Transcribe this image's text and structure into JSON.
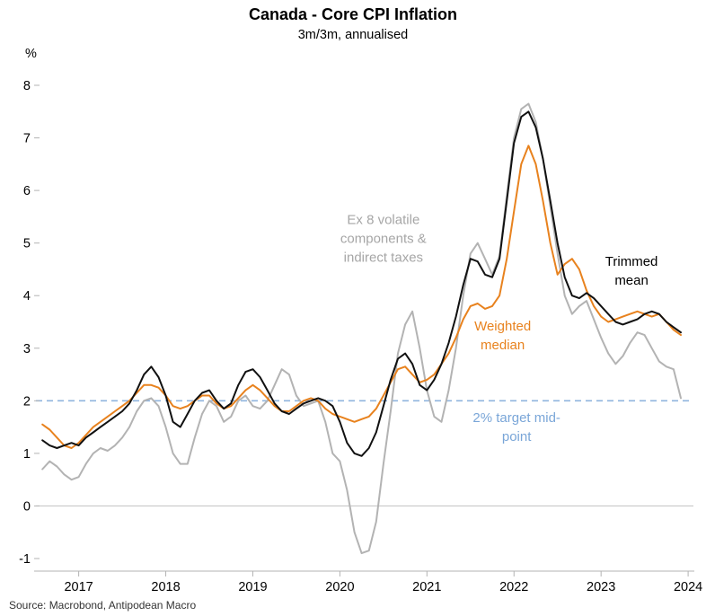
{
  "page": {
    "source": "Source: Macrobond, Antipodean Macro"
  },
  "chart_data": {
    "type": "line",
    "title": "Canada - Core CPI Inflation",
    "subtitle": "3m/3m, annualised",
    "y_axis_unit": "%",
    "xlim": [
      2016.55,
      2024.03
    ],
    "ylim": [
      -1,
      8
    ],
    "yticks": [
      -1,
      0,
      1,
      2,
      3,
      4,
      5,
      6,
      7,
      8
    ],
    "xticks": [
      2017,
      2018,
      2019,
      2020,
      2021,
      2022,
      2023,
      2024
    ],
    "grid": false,
    "legend": "inline-annotations",
    "x": [
      2016.583,
      2016.667,
      2016.75,
      2016.833,
      2016.917,
      2017.0,
      2017.083,
      2017.167,
      2017.25,
      2017.333,
      2017.417,
      2017.5,
      2017.583,
      2017.667,
      2017.75,
      2017.833,
      2017.917,
      2018.0,
      2018.083,
      2018.167,
      2018.25,
      2018.333,
      2018.417,
      2018.5,
      2018.583,
      2018.667,
      2018.75,
      2018.833,
      2018.917,
      2019.0,
      2019.083,
      2019.167,
      2019.25,
      2019.333,
      2019.417,
      2019.5,
      2019.583,
      2019.667,
      2019.75,
      2019.833,
      2019.917,
      2020.0,
      2020.083,
      2020.167,
      2020.25,
      2020.333,
      2020.417,
      2020.5,
      2020.583,
      2020.667,
      2020.75,
      2020.833,
      2020.917,
      2021.0,
      2021.083,
      2021.167,
      2021.25,
      2021.333,
      2021.417,
      2021.5,
      2021.583,
      2021.667,
      2021.75,
      2021.833,
      2021.917,
      2022.0,
      2022.083,
      2022.167,
      2022.25,
      2022.333,
      2022.417,
      2022.5,
      2022.583,
      2022.667,
      2022.75,
      2022.833,
      2022.917,
      2023.0,
      2023.083,
      2023.167,
      2023.25,
      2023.333,
      2023.417,
      2023.5,
      2023.583,
      2023.667,
      2023.75,
      2023.833,
      2023.917
    ],
    "series": [
      {
        "name": "Trimmed mean",
        "color": "#111111",
        "values": [
          1.25,
          1.15,
          1.1,
          1.15,
          1.2,
          1.15,
          1.3,
          1.4,
          1.5,
          1.6,
          1.7,
          1.8,
          1.95,
          2.2,
          2.5,
          2.65,
          2.45,
          2.1,
          1.6,
          1.5,
          1.75,
          2.0,
          2.15,
          2.2,
          2.0,
          1.85,
          1.95,
          2.3,
          2.55,
          2.6,
          2.45,
          2.2,
          1.95,
          1.8,
          1.75,
          1.85,
          1.95,
          2.0,
          2.05,
          2.0,
          1.9,
          1.6,
          1.2,
          1.0,
          0.95,
          1.1,
          1.4,
          1.9,
          2.4,
          2.8,
          2.9,
          2.7,
          2.3,
          2.2,
          2.4,
          2.7,
          3.1,
          3.6,
          4.2,
          4.7,
          4.65,
          4.4,
          4.35,
          4.7,
          5.8,
          6.9,
          7.4,
          7.5,
          7.2,
          6.6,
          5.8,
          5.0,
          4.35,
          4.0,
          3.95,
          4.05,
          3.95,
          3.8,
          3.65,
          3.5,
          3.45,
          3.5,
          3.55,
          3.65,
          3.7,
          3.65,
          3.5,
          3.4,
          3.3
        ]
      },
      {
        "name": "Weighted median",
        "color": "#e8821e",
        "values": [
          1.55,
          1.45,
          1.3,
          1.15,
          1.1,
          1.2,
          1.35,
          1.5,
          1.6,
          1.7,
          1.8,
          1.9,
          2.0,
          2.15,
          2.3,
          2.3,
          2.25,
          2.1,
          1.9,
          1.85,
          1.9,
          2.0,
          2.1,
          2.1,
          1.95,
          1.85,
          1.9,
          2.05,
          2.2,
          2.3,
          2.2,
          2.05,
          1.9,
          1.8,
          1.8,
          1.9,
          2.0,
          2.05,
          2.0,
          1.85,
          1.75,
          1.7,
          1.65,
          1.6,
          1.65,
          1.7,
          1.85,
          2.1,
          2.35,
          2.6,
          2.65,
          2.5,
          2.35,
          2.4,
          2.5,
          2.7,
          2.9,
          3.2,
          3.55,
          3.8,
          3.85,
          3.75,
          3.8,
          4.0,
          4.7,
          5.6,
          6.5,
          6.85,
          6.5,
          5.8,
          5.0,
          4.4,
          4.6,
          4.7,
          4.5,
          4.1,
          3.8,
          3.6,
          3.5,
          3.55,
          3.6,
          3.65,
          3.7,
          3.65,
          3.6,
          3.65,
          3.5,
          3.35,
          3.25
        ]
      },
      {
        "name": "Ex 8 volatile components & indirect taxes",
        "color": "#b3b3b3",
        "values": [
          0.7,
          0.85,
          0.75,
          0.6,
          0.5,
          0.55,
          0.8,
          1.0,
          1.1,
          1.05,
          1.15,
          1.3,
          1.5,
          1.8,
          2.0,
          2.05,
          1.9,
          1.5,
          1.0,
          0.8,
          0.8,
          1.3,
          1.75,
          2.0,
          1.9,
          1.6,
          1.7,
          2.0,
          2.1,
          1.9,
          1.85,
          2.0,
          2.3,
          2.6,
          2.5,
          2.1,
          1.9,
          1.95,
          2.0,
          1.6,
          1.0,
          0.85,
          0.3,
          -0.5,
          -0.9,
          -0.85,
          -0.3,
          0.8,
          1.8,
          2.9,
          3.45,
          3.7,
          3.0,
          2.2,
          1.7,
          1.6,
          2.2,
          3.0,
          4.0,
          4.8,
          5.0,
          4.7,
          4.4,
          4.75,
          5.9,
          7.0,
          7.55,
          7.65,
          7.3,
          6.6,
          5.7,
          4.8,
          4.0,
          3.65,
          3.8,
          3.9,
          3.55,
          3.2,
          2.9,
          2.7,
          2.85,
          3.1,
          3.3,
          3.25,
          3.0,
          2.75,
          2.65,
          2.6,
          2.05
        ]
      }
    ],
    "reference_lines": [
      {
        "y": 0,
        "color": "#c9c9c9",
        "style": "solid",
        "label": ""
      },
      {
        "y": 2,
        "color": "#8fb4de",
        "style": "dashed",
        "label": "2% target mid-point"
      }
    ],
    "annotations": [
      {
        "lines": [
          "Ex 8 volatile",
          "components &",
          "indirect taxes"
        ],
        "x": 2020.5,
        "y": 5.45,
        "color": "#a6a6a6"
      },
      {
        "lines": [
          "Trimmed",
          "mean"
        ],
        "x": 2023.35,
        "y": 4.65,
        "color": "#000000"
      },
      {
        "lines": [
          "Weighted",
          "median"
        ],
        "x": 2021.87,
        "y": 3.42,
        "color": "#e8821e"
      },
      {
        "lines": [
          "2% target mid-",
          "point"
        ],
        "x": 2022.03,
        "y": 1.68,
        "color": "#7aa6d8"
      }
    ]
  }
}
